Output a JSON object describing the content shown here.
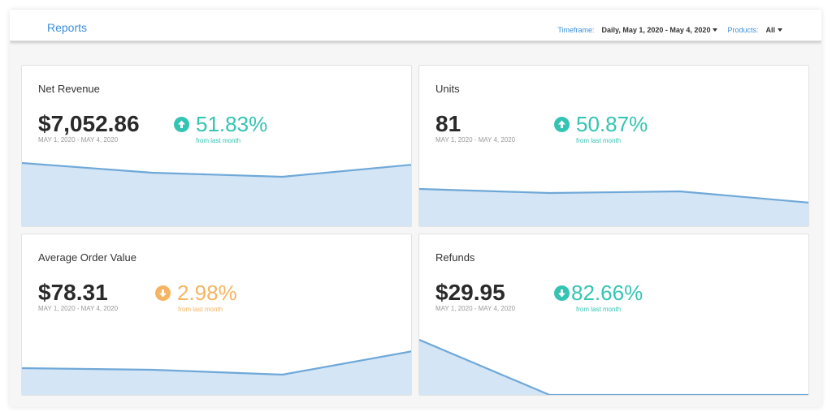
{
  "header": {
    "title": "Reports",
    "timeframe_label": "Timeframe:",
    "timeframe_value": "Daily, May 1, 2020 - May 4, 2020",
    "products_label": "Products:",
    "products_value": "All"
  },
  "cards": [
    {
      "title": "Net Revenue",
      "value": "$7,052.86",
      "range": "MAY 1, 2020 - MAY 4, 2020",
      "change": "51.83%",
      "change_label": "from last month",
      "direction": "up",
      "color": "#33c4b3",
      "series": [
        7.8,
        6.6,
        6.1,
        7.6
      ]
    },
    {
      "title": "Units",
      "value": "81",
      "range": "MAY 1, 2020 - MAY 4, 2020",
      "change": "50.87%",
      "change_label": "from last month",
      "direction": "up",
      "color": "#33c4b3",
      "series": [
        4.6,
        4.1,
        4.3,
        2.9
      ]
    },
    {
      "title": "Average Order Value",
      "value": "$78.31",
      "range": "MAY 1, 2020 - MAY 4, 2020",
      "change": "2.98%",
      "change_label": "from last month",
      "direction": "down",
      "color": "#f5b461",
      "series": [
        3.3,
        3.1,
        2.5,
        5.4
      ]
    },
    {
      "title": "Refunds",
      "value": "$29.95",
      "range": "MAY 1, 2020 - MAY 4, 2020",
      "change": "82.66%",
      "change_label": "from last month",
      "direction": "down",
      "color": "#33c4b3",
      "series": [
        6.8,
        0,
        0,
        0
      ]
    }
  ],
  "chart_style": {
    "line_color": "#6fa8d8",
    "fill_color": "#d4e5f5"
  }
}
